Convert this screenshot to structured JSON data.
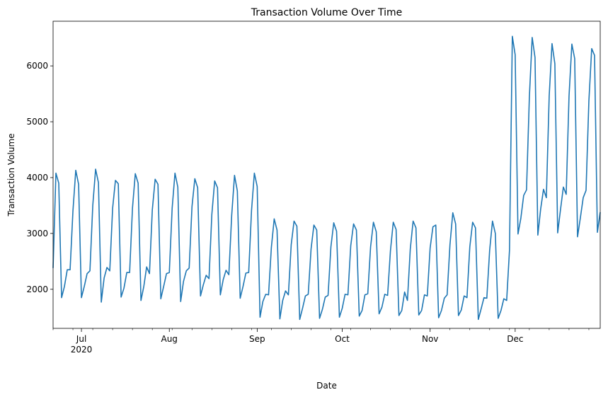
{
  "chart_data": {
    "type": "line",
    "title": "Transaction Volume Over Time",
    "xlabel": "Date",
    "ylabel": "Transaction Volume",
    "x_range": [
      "2020-06-21",
      "2020-12-31"
    ],
    "ylim": [
      1300,
      6800
    ],
    "yticks": [
      2000,
      3000,
      4000,
      5000,
      6000
    ],
    "xticks": [
      {
        "date": "2020-07-01",
        "label": "Jul",
        "sublabel": "2020"
      },
      {
        "date": "2020-08-01",
        "label": "Aug",
        "sublabel": ""
      },
      {
        "date": "2020-09-01",
        "label": "Sep",
        "sublabel": ""
      },
      {
        "date": "2020-10-01",
        "label": "Oct",
        "sublabel": ""
      },
      {
        "date": "2020-11-01",
        "label": "Nov",
        "sublabel": ""
      },
      {
        "date": "2020-12-01",
        "label": "Dec",
        "sublabel": ""
      }
    ],
    "grid": false,
    "line_color": "#1f77b4",
    "series": [
      {
        "start_date": "2020-06-21",
        "frequency": "daily",
        "values": [
          2380,
          4080,
          3900,
          1850,
          2050,
          2350,
          2350,
          3400,
          4130,
          3880,
          1850,
          2050,
          2280,
          2330,
          3500,
          4150,
          3910,
          1770,
          2200,
          2390,
          2330,
          3450,
          3950,
          3890,
          1860,
          2020,
          2300,
          2300,
          3450,
          4070,
          3900,
          1800,
          2050,
          2400,
          2280,
          3420,
          3970,
          3880,
          1830,
          2050,
          2280,
          2300,
          3450,
          4080,
          3830,
          1780,
          2140,
          2330,
          2380,
          3480,
          3980,
          3820,
          1880,
          2080,
          2250,
          2190,
          3340,
          3940,
          3820,
          1900,
          2170,
          2340,
          2260,
          3320,
          4040,
          3760,
          1840,
          2050,
          2290,
          2300,
          3410,
          4080,
          3840,
          1500,
          1780,
          1910,
          1900,
          2750,
          3260,
          3060,
          1470,
          1800,
          1970,
          1900,
          2800,
          3220,
          3130,
          1460,
          1660,
          1880,
          1910,
          2720,
          3150,
          3060,
          1480,
          1640,
          1860,
          1890,
          2760,
          3190,
          3040,
          1500,
          1660,
          1910,
          1900,
          2780,
          3170,
          3060,
          1520,
          1620,
          1900,
          1920,
          2760,
          3200,
          3030,
          1560,
          1680,
          1910,
          1890,
          2690,
          3200,
          3070,
          1530,
          1620,
          1950,
          1800,
          2720,
          3220,
          3100,
          1540,
          1620,
          1900,
          1880,
          2740,
          3120,
          3150,
          1490,
          1620,
          1840,
          1900,
          2800,
          3370,
          3170,
          1530,
          1630,
          1880,
          1850,
          2760,
          3200,
          3100,
          1460,
          1650,
          1850,
          1840,
          2700,
          3220,
          3000,
          1480,
          1620,
          1830,
          1800,
          2700,
          6530,
          6200,
          2990,
          3270,
          3680,
          3780,
          5430,
          6510,
          6150,
          2970,
          3440,
          3790,
          3640,
          5460,
          6400,
          6040,
          3010,
          3430,
          3830,
          3700,
          5460,
          6390,
          6130,
          2940,
          3280,
          3640,
          3770,
          5370,
          6310,
          6190,
          3020,
          3380
        ]
      }
    ]
  }
}
